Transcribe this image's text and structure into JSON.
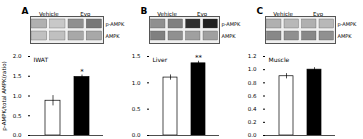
{
  "chart_data": [
    {
      "type": "bar",
      "title": "A",
      "subtitle": "IWAT",
      "ylabel": "p-AMPK/total AMPK(ratio)",
      "categories": [
        "Vehicle",
        "Evo"
      ],
      "values": [
        0.88,
        1.48
      ],
      "errors": [
        0.13,
        0.05
      ],
      "colors": [
        "white",
        "black"
      ],
      "ylim": [
        0,
        2.0
      ],
      "yticks": [
        {
          "value": 0,
          "label": "0.0"
        },
        0.5,
        {
          "value": 1.0,
          "label": "1.0"
        },
        1.5,
        {
          "value": 2.0,
          "label": "2.0"
        }
      ],
      "grid": false,
      "tick_labels": "y",
      "annotations": [
        {
          "text": "*",
          "category": "Evo"
        }
      ],
      "blot": [
        {
          "name": "p-AMPK",
          "colors": [
            "#b0b0b0",
            "#c8c8c8",
            "#909090",
            "#787878"
          ]
        },
        {
          "name": "AMPK",
          "colors": [
            "#c0c0c0",
            "#c0c0c0",
            "#a8a8a8",
            "#a8a8a8"
          ]
        }
      ]
    },
    {
      "type": "bar",
      "title": "B",
      "subtitle": "Liver",
      "categories": [
        "Vehicle",
        "Evo"
      ],
      "values": [
        1.1,
        1.37
      ],
      "errors": [
        0.05,
        0.04
      ],
      "colors": [
        "white",
        "black"
      ],
      "ylim": [
        0,
        1.5
      ],
      "yticks": [
        {
          "value": 0,
          "label": "0.0"
        },
        0.5,
        {
          "value": 1.0,
          "label": "1.0"
        },
        1.5
      ],
      "grid": false,
      "tick_labels": "y",
      "annotations": [
        {
          "text": "**",
          "category": "Evo"
        }
      ],
      "blot": [
        {
          "name": "p-AMPK",
          "colors": [
            "#909090",
            "#808080",
            "#303030",
            "#202020"
          ]
        },
        {
          "name": "AMPK",
          "colors": [
            "#808080",
            "#909090",
            "#a0a0a0",
            "#a0a0a0"
          ]
        }
      ]
    },
    {
      "type": "bar",
      "title": "C",
      "subtitle": "Muscle",
      "categories": [
        "Vehicle",
        "Evo"
      ],
      "values": [
        0.9,
        1.0
      ],
      "errors": [
        0.04,
        0.03
      ],
      "colors": [
        "white",
        "black"
      ],
      "ylim": [
        0,
        1.2
      ],
      "yticks": [
        {
          "value": 0,
          "label": "0.0"
        },
        0.2,
        0.4,
        0.6,
        0.8,
        {
          "value": 1.0,
          "label": "1.0"
        },
        1.2
      ],
      "grid": false,
      "tick_labels": "y",
      "blot": [
        {
          "name": "p-AMPK",
          "colors": [
            "#b0b0b0",
            "#b8b8b8",
            "#b0b0b0",
            "#b8b8b8"
          ]
        },
        {
          "name": "AMPK",
          "colors": [
            "#888888",
            "#909090",
            "#888888",
            "#909090"
          ]
        }
      ]
    }
  ]
}
